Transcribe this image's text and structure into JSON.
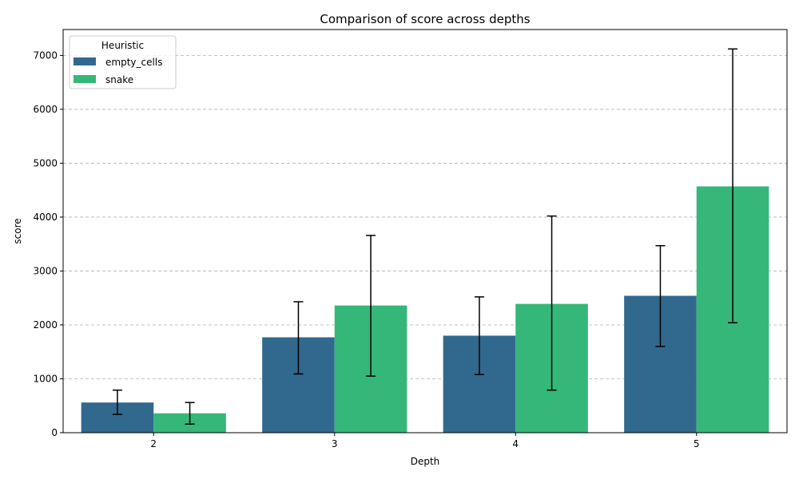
{
  "chart_data": {
    "type": "bar",
    "title": "Comparison of score across depths",
    "xlabel": "Depth",
    "ylabel": "score",
    "categories": [
      "2",
      "3",
      "4",
      "5"
    ],
    "ylim": [
      0,
      7480
    ],
    "yticks": [
      0,
      1000,
      2000,
      3000,
      4000,
      5000,
      6000,
      7000
    ],
    "grid": "y-dashed",
    "legend": {
      "title": "Heuristic",
      "position": "top-left"
    },
    "series": [
      {
        "name": "empty_cells",
        "color": "#31688e",
        "values": [
          560,
          1770,
          1800,
          2540
        ],
        "err_low": [
          340,
          1090,
          1080,
          1600
        ],
        "err_high": [
          790,
          2430,
          2520,
          3470
        ]
      },
      {
        "name": "snake",
        "color": "#35b779",
        "values": [
          360,
          2360,
          2390,
          4570
        ],
        "err_low": [
          160,
          1050,
          790,
          2040
        ],
        "err_high": [
          560,
          3660,
          4020,
          7120
        ]
      }
    ]
  }
}
